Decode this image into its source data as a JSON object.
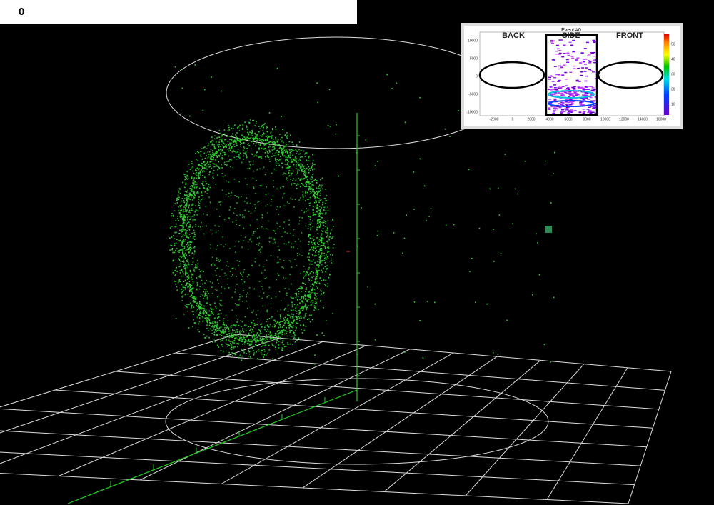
{
  "toolbar": {
    "text": "0"
  },
  "inset": {
    "title": "Event #0",
    "panels": [
      "BACK",
      "SIDE",
      "FRONT"
    ],
    "y_ticks": [
      "10000",
      "5000",
      "0",
      "-5000",
      "-10000"
    ],
    "x_ticks": [
      "-2000",
      "0",
      "2000",
      "4000",
      "6000",
      "8000",
      "10000",
      "12000",
      "14000",
      "16000"
    ],
    "color_ticks": [
      "50",
      "40",
      "30",
      "20",
      "10"
    ]
  }
}
